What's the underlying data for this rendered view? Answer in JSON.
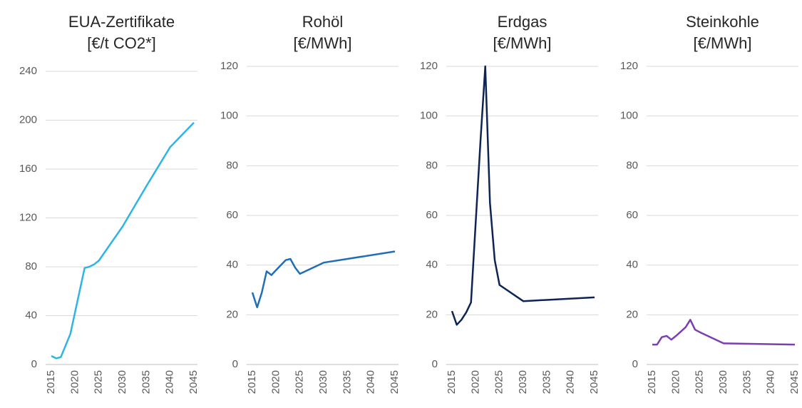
{
  "chart_data": [
    {
      "type": "line",
      "title": "EUA-Zertifikate",
      "subtitle": "[€/t CO2*]",
      "x": [
        2015,
        2016,
        2017,
        2019,
        2022,
        2023,
        2024,
        2025,
        2030,
        2035,
        2040,
        2045
      ],
      "values": [
        7,
        5,
        6,
        25,
        79,
        80,
        82,
        85,
        113,
        146,
        178,
        198
      ],
      "color": "#2eb4e6",
      "xlim": [
        2015,
        2045
      ],
      "xticks": [
        2015,
        2020,
        2025,
        2030,
        2035,
        2040,
        2045
      ],
      "ylim": [
        0,
        240
      ],
      "yticks": [
        0,
        40,
        80,
        120,
        160,
        200,
        240
      ],
      "grid": true
    },
    {
      "type": "line",
      "title": "Rohöl",
      "subtitle": "[€/MWh]",
      "x": [
        2015,
        2016,
        2017,
        2018,
        2019,
        2020,
        2022,
        2023,
        2024,
        2025,
        2030,
        2045
      ],
      "values": [
        29,
        23,
        29,
        37.5,
        36,
        38,
        42,
        42.5,
        39,
        36.5,
        41,
        45.5
      ],
      "color": "#1f6fb8",
      "xlim": [
        2015,
        2045
      ],
      "xticks": [
        2015,
        2020,
        2025,
        2030,
        2035,
        2040,
        2045
      ],
      "ylim": [
        0,
        120
      ],
      "yticks": [
        0,
        20,
        40,
        60,
        80,
        100,
        120
      ],
      "grid": true
    },
    {
      "type": "line",
      "title": "Erdgas",
      "subtitle": "[€/MWh]",
      "x": [
        2015,
        2016,
        2017,
        2018,
        2019,
        2021,
        2022,
        2023,
        2024,
        2025,
        2030,
        2045
      ],
      "values": [
        21.5,
        16,
        18,
        21,
        25,
        90,
        120,
        65,
        42,
        32,
        25.5,
        27
      ],
      "color": "#0e2452",
      "xlim": [
        2015,
        2045
      ],
      "xticks": [
        2015,
        2020,
        2025,
        2030,
        2035,
        2040,
        2045
      ],
      "ylim": [
        0,
        120
      ],
      "yticks": [
        0,
        20,
        40,
        60,
        80,
        100,
        120
      ],
      "grid": true
    },
    {
      "type": "line",
      "title": "Steinkohle",
      "subtitle": "[€/MWh]",
      "x": [
        2015,
        2016,
        2017,
        2018,
        2019,
        2020,
        2022,
        2023,
        2024,
        2025,
        2030,
        2045
      ],
      "values": [
        8,
        8,
        11,
        11.5,
        10,
        11.5,
        15,
        18,
        14,
        13,
        8.5,
        8
      ],
      "color": "#7b3fb0",
      "xlim": [
        2015,
        2045
      ],
      "xticks": [
        2015,
        2020,
        2025,
        2030,
        2035,
        2040,
        2045
      ],
      "ylim": [
        0,
        120
      ],
      "yticks": [
        0,
        20,
        40,
        60,
        80,
        100,
        120
      ],
      "grid": true
    }
  ]
}
